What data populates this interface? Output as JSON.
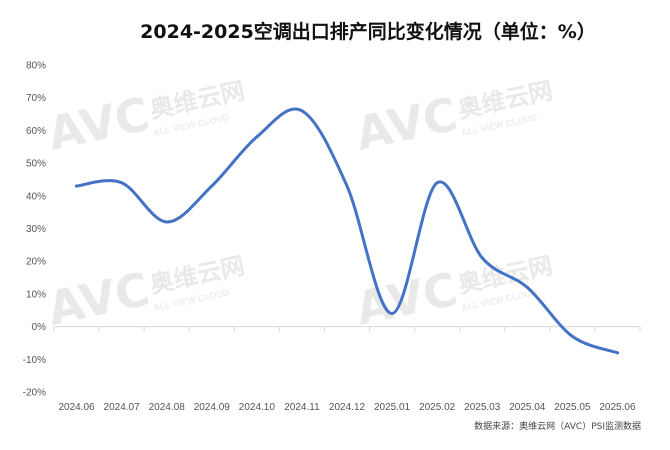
{
  "chart_data": {
    "type": "line",
    "title": "2024-2025空调出口排产同比变化情况（单位：%）",
    "categories": [
      "2024.06",
      "2024.07",
      "2024.08",
      "2024.09",
      "2024.10",
      "2024.11",
      "2024.12",
      "2025.01",
      "2025.02",
      "2025.03",
      "2025.04",
      "2025.05",
      "2025.06"
    ],
    "series": [
      {
        "values": [
          43,
          44,
          32,
          43,
          58,
          66,
          43,
          4,
          44,
          21,
          12,
          -3,
          -8
        ]
      }
    ],
    "y_ticks": [
      "80%",
      "70%",
      "60%",
      "50%",
      "40%",
      "30%",
      "20%",
      "10%",
      "0%",
      "-10%",
      "-20%"
    ],
    "ylim": [
      -20,
      80
    ],
    "y_unit": "%",
    "grid": false,
    "line_color": "#4472C4",
    "xlabel": "",
    "ylabel": ""
  },
  "watermark": {
    "brand_cn": "奥维云网",
    "brand_en": "ALL VIEW CLOUD",
    "logo": "AVC"
  },
  "source_note": "数据来源：奥维云网（AVC）PSI监测数据"
}
